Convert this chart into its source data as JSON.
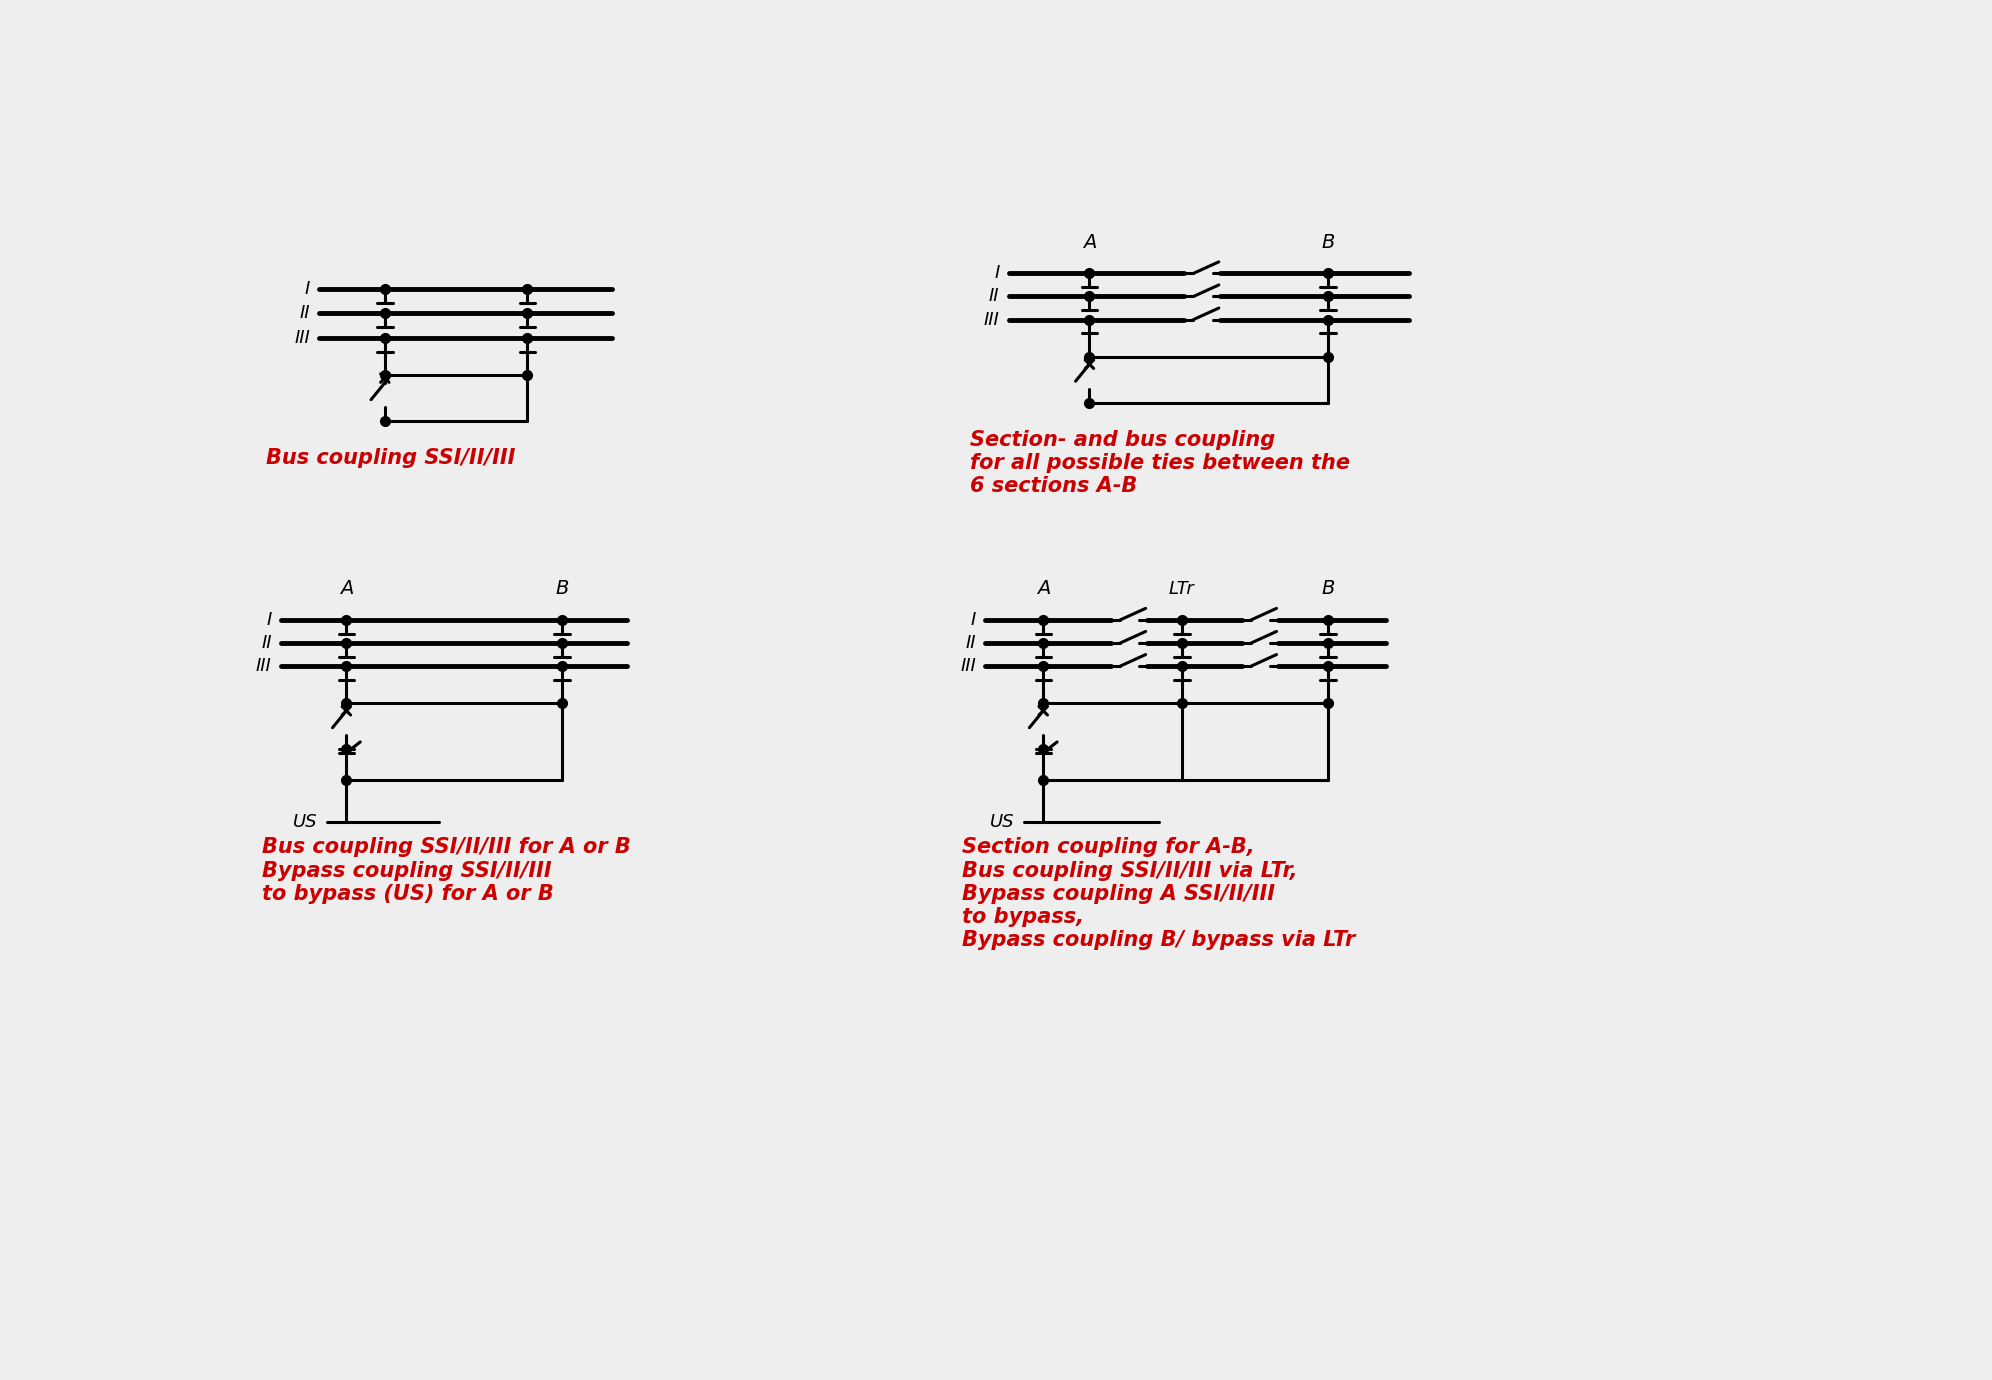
{
  "bg_color": "#eeeeee",
  "line_color": "#000000",
  "text_color_red": "#cc0000",
  "lw_bus": 3.5,
  "lw": 2.2,
  "dot_size": 7,
  "label1": "Bus coupling SSI/II/III",
  "label2": "Section- and bus coupling\nfor all possible ties between the\n6 sections A-B",
  "label3": "Bus coupling SSI/II/III for A or B\nBypass coupling SSI/II/III\nto bypass (US) for A or B",
  "label4": "Section coupling for A-B,\nBus coupling SSI/II/III via LTr,\nBypass coupling A SSI/II/III\nto bypass,\nBypass coupling B/ bypass via LTr"
}
